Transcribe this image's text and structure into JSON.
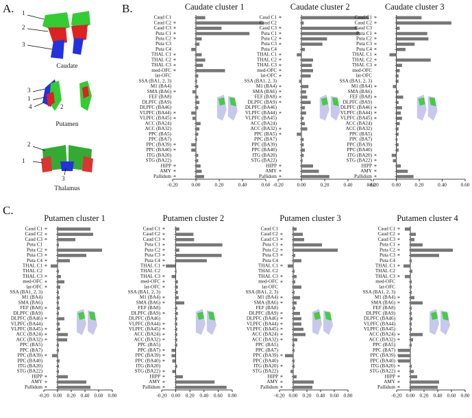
{
  "panels": {
    "a": "A.",
    "b": "B.",
    "c": "C."
  },
  "anatomy": [
    {
      "name": "Caudate",
      "callouts": [
        "1",
        "2",
        "3"
      ]
    },
    {
      "name": "Putamen",
      "callouts": [
        "3",
        "1",
        "2",
        "4"
      ]
    },
    {
      "name": "Thalamus",
      "callouts": [
        "2",
        "1",
        "3"
      ]
    }
  ],
  "chart_data": [
    {
      "type": "bar",
      "orientation": "horizontal",
      "title": "Caudate cluster 1",
      "color": "#777777",
      "categories": [
        "Caud C1",
        "Caud C2",
        "Caud C3",
        "Puta C1",
        "Puta C2",
        "Puta C3",
        "Puta C4",
        "THAL C1",
        "THAL C2",
        "THAL C3",
        "med-OFC",
        "lat-OFC",
        "SSA (BA1, 2, 3)",
        "M1 (BA4)",
        "SMA (BA6)",
        "FEF (BA8)",
        "DLPFC (BA9)",
        "DLPFC (BA46)",
        "VLPFC (BA44)",
        "VLPFC (BA45)",
        "ACC (BA24)",
        "ACC (BA32)",
        "PPC (BA5)",
        "PPC (BA7)",
        "PPC (BA39)",
        "PPC (BA40)",
        "ITG (BA20)",
        "STG (BA22)",
        "HIPP",
        "AMY",
        "Pallidum"
      ],
      "values": [
        0.08,
        0.58,
        0.22,
        0.46,
        0.05,
        0.03,
        -0.04,
        0.05,
        0.08,
        0.06,
        0.25,
        0.02,
        0.01,
        0.02,
        -0.03,
        0.02,
        0.03,
        0.02,
        -0.04,
        -0.03,
        0.04,
        0.03,
        0.02,
        0.01,
        -0.04,
        -0.04,
        0.02,
        0.02,
        0.04,
        0.05,
        0.07
      ],
      "significance_labels": [
        null,
        "*",
        "*",
        "*",
        "*",
        null,
        null,
        "*",
        "*",
        "*",
        "*",
        null,
        null,
        null,
        "*",
        null,
        null,
        null,
        "*",
        "*",
        null,
        null,
        null,
        null,
        "*",
        "*",
        null,
        null,
        "*",
        "*",
        "*"
      ],
      "xlim": [
        -0.2,
        0.6
      ],
      "xticks": [
        {
          "value": -0.2,
          "label": "-0.20"
        },
        {
          "value": 0,
          "label": "0.00"
        },
        {
          "value": 0.2,
          "label": "0.20"
        },
        {
          "value": 0.4,
          "label": "0.40"
        },
        {
          "value": 0.6,
          "label": "0.60"
        }
      ]
    },
    {
      "type": "bar",
      "orientation": "horizontal",
      "title": "Caudate cluster 2",
      "color": "#777777",
      "categories": [
        "Caud C1",
        "Caud C2",
        "Caud C3",
        "Puta C1",
        "Puta C2",
        "Puta C3",
        "Puta C4",
        "THAL C1",
        "THAL C2",
        "THAL C3",
        "med-OFC",
        "lat-OFC",
        "SSA (BA1, 2, 3)",
        "M1 (BA4)",
        "SMA (BA6)",
        "FEF (BA8)",
        "DLPFC (BA9)",
        "DLPFC (BA46)",
        "VLPFC (BA44)",
        "VLPFC (BA45)",
        "ACC (BA24)",
        "ACC (BA32)",
        "PPC (BA5)",
        "PPC (BA7)",
        "PPC (BA39)",
        "PPC (BA40)",
        "ITG (BA20)",
        "STG (BA22)",
        "HIPP",
        "AMY",
        "Pallidum"
      ],
      "values": [
        0.58,
        0.02,
        0.48,
        0.5,
        0.22,
        0.18,
        0.03,
        -0.04,
        0.1,
        0.09,
        0.1,
        0.08,
        -0.02,
        0.06,
        0.04,
        0.05,
        0.08,
        0.03,
        0.04,
        0.02,
        0.03,
        0.05,
        -0.04,
        0.02,
        0.02,
        0.03,
        0.02,
        0.01,
        0.1,
        0.15,
        0.24
      ],
      "significance_labels": [
        "*",
        null,
        "*",
        "*",
        "*",
        "*",
        null,
        "*",
        "*",
        "*",
        "*",
        "*",
        null,
        "*",
        "*",
        "*",
        "*",
        null,
        "*",
        null,
        null,
        "*",
        "*",
        null,
        null,
        null,
        null,
        null,
        "*",
        "*",
        "*"
      ],
      "xlim": [
        -0.2,
        0.6
      ],
      "xticks": [
        {
          "value": -0.2,
          "label": "-0.20"
        },
        {
          "value": 0,
          "label": "0.00"
        },
        {
          "value": 0.2,
          "label": "0.20"
        },
        {
          "value": 0.4,
          "label": "0.40"
        },
        {
          "value": 0.6,
          "label": "0.60"
        }
      ]
    },
    {
      "type": "bar",
      "orientation": "horizontal",
      "title": "Caudate cluster 3",
      "color": "#777777",
      "categories": [
        "Caud C1",
        "Caud C2",
        "Caud C3",
        "Puta C1",
        "Puta C2",
        "Puta C3",
        "Puta C4",
        "THAL C1",
        "THAL C2",
        "THAL C3",
        "med-OFC",
        "lat-OFC",
        "SSA (BA1, 2, 3)",
        "M1 (BA4)",
        "SMA (BA6)",
        "FEF (BA8)",
        "DLPFC (BA9)",
        "DLPFC (BA46)",
        "VLPFC (BA44)",
        "VLPFC (BA45)",
        "ACC (BA24)",
        "ACC (BA32)",
        "PPC (BA5)",
        "PPC (BA7)",
        "PPC (BA39)",
        "PPC (BA40)",
        "ITG (BA20)",
        "STG (BA22)",
        "HIPP",
        "AMY",
        "Pallidum"
      ],
      "values": [
        0.22,
        0.48,
        0.03,
        0.27,
        0.28,
        0.16,
        0.08,
        -0.06,
        0.3,
        0.05,
        0.03,
        0.02,
        0.02,
        -0.03,
        0.02,
        0.06,
        0.02,
        0.05,
        0.04,
        0.05,
        0.03,
        0.02,
        0.02,
        0.01,
        0.02,
        0.02,
        -0.04,
        -0.03,
        0.04,
        0.1,
        0.15
      ],
      "significance_labels": [
        "*",
        "*",
        null,
        "*",
        "*",
        "*",
        "*",
        "*",
        "*",
        "*",
        null,
        null,
        null,
        "*",
        null,
        "*",
        null,
        "*",
        "*",
        "*",
        null,
        null,
        null,
        null,
        null,
        null,
        "*",
        "*",
        "*",
        "*",
        "*"
      ],
      "xlim": [
        -0.2,
        0.6
      ],
      "xticks": [
        {
          "value": -0.2,
          "label": "-0.20"
        },
        {
          "value": 0,
          "label": "0.00"
        },
        {
          "value": 0.2,
          "label": "0.20"
        },
        {
          "value": 0.4,
          "label": "0.40"
        },
        {
          "value": 0.6,
          "label": "0.60"
        }
      ]
    },
    {
      "type": "bar",
      "orientation": "horizontal",
      "title": "Putamen cluster 1",
      "color": "#777777",
      "categories": [
        "Caud C1",
        "Caud C2",
        "Caud C3",
        "Puta C1",
        "Puta C2",
        "Puta C3",
        "Puta C4",
        "THAL C1",
        "THAL C2",
        "THAL C3",
        "med-OFC",
        "lat-OFC",
        "SSA (BA1, 2, 3)",
        "M1 (BA4)",
        "SMA (BA6)",
        "FEF (BA8)",
        "DLPFC (BA9)",
        "DLPFC (BA46)",
        "VLPFC (BA44)",
        "VLPFC (BA45)",
        "ACC (BA24)",
        "ACC (BA32)",
        "PPC (BA5)",
        "PPC (BA7)",
        "PPC (BA39)",
        "PPC (BA40)",
        "ITG (BA20)",
        "STG (BA22)",
        "HIPP",
        "AMY",
        "Pallidum"
      ],
      "values": [
        0.48,
        0.52,
        0.26,
        0.02,
        0.65,
        0.42,
        0.18,
        -0.1,
        0.02,
        0.05,
        0.1,
        0.04,
        0.02,
        0.03,
        0.02,
        0.03,
        0.02,
        0.1,
        0.03,
        0.04,
        0.15,
        0.14,
        0.02,
        0.02,
        -0.08,
        0.03,
        0.02,
        0.02,
        0.15,
        0.42,
        0.48
      ],
      "significance_labels": [
        "*",
        "*",
        "*",
        null,
        "*",
        "*",
        "*",
        "*",
        null,
        "*",
        "*",
        "*",
        null,
        null,
        null,
        "*",
        null,
        "*",
        null,
        "*",
        "*",
        "*",
        null,
        null,
        "*",
        null,
        null,
        null,
        "*",
        "*",
        "*"
      ],
      "xlim": [
        -0.2,
        0.8
      ],
      "xticks": [
        {
          "value": -0.2,
          "label": "-0.20"
        },
        {
          "value": 0,
          "label": "0.00"
        },
        {
          "value": 0.2,
          "label": "0.20"
        },
        {
          "value": 0.4,
          "label": "0.40"
        },
        {
          "value": 0.6,
          "label": "0.60"
        },
        {
          "value": 0.8,
          "label": "0.80"
        }
      ]
    },
    {
      "type": "bar",
      "orientation": "horizontal",
      "title": "Putamen cluster 2",
      "color": "#777777",
      "categories": [
        "Caud C1",
        "Caud C2",
        "Caud C3",
        "Puta C1",
        "Puta C2",
        "Puta C3",
        "Puta C4",
        "THAL C1",
        "THAL C2",
        "THAL C3",
        "med-OFC",
        "lat-OFC",
        "SSA (BA1, 2, 3)",
        "M1 (BA4)",
        "SMA (BA6)",
        "FEF (BA8)",
        "DLPFC (BA9)",
        "DLPFC (BA46)",
        "VLPFC (BA44)",
        "VLPFC (BA45)",
        "ACC (BA24)",
        "ACC (BA32)",
        "PPC (BA5)",
        "PPC (BA7)",
        "PPC (BA39)",
        "PPC (BA40)",
        "ITG (BA20)",
        "STG (BA22)",
        "HIPP",
        "AMY",
        "Pallidum"
      ],
      "values": [
        0.05,
        0.25,
        0.26,
        0.66,
        0.05,
        0.65,
        0.44,
        -0.14,
        0.01,
        -0.06,
        0.03,
        0.03,
        0.03,
        0.04,
        0.12,
        0.02,
        0.03,
        0.02,
        0.02,
        0.02,
        0.02,
        0.02,
        0.02,
        -0.06,
        -0.06,
        -0.05,
        0.02,
        -0.05,
        0.1,
        0.55,
        0.72
      ],
      "significance_labels": [
        "*",
        "*",
        "*",
        "*",
        "*",
        "*",
        "*",
        "*",
        null,
        "*",
        "*",
        "*",
        null,
        "*",
        "*",
        null,
        "*",
        null,
        "*",
        "*",
        "*",
        "*",
        null,
        "*",
        "*",
        "*",
        null,
        "*",
        "*",
        "*",
        "*"
      ],
      "xlim": [
        -0.2,
        0.8
      ],
      "xticks": [
        {
          "value": -0.2,
          "label": "-0.20"
        },
        {
          "value": 0,
          "label": "0.00"
        },
        {
          "value": 0.2,
          "label": "0.20"
        },
        {
          "value": 0.4,
          "label": "0.40"
        },
        {
          "value": 0.6,
          "label": "0.60"
        },
        {
          "value": 0.8,
          "label": "0.80"
        }
      ]
    },
    {
      "type": "bar",
      "orientation": "horizontal",
      "title": "Putamen cluster 3",
      "color": "#777777",
      "categories": [
        "Caud C1",
        "Caud C2",
        "Caud C3",
        "Puta C1",
        "Puta C2",
        "Puta C3",
        "Puta C4",
        "THAL C1",
        "THAL C2",
        "THAL C3",
        "med-OFC",
        "lat-OFC",
        "SSA (BA1, 2, 3)",
        "M1 (BA4)",
        "SMA (BA6)",
        "FEF (BA8)",
        "DLPFC (BA9)",
        "DLPFC (BA46)",
        "VLPFC (BA44)",
        "VLPFC (BA45)",
        "ACC (BA24)",
        "ACC (BA32)",
        "PPC (BA5)",
        "PPC (BA7)",
        "PPC (BA39)",
        "PPC (BA40)",
        "ITG (BA20)",
        "STG (BA22)",
        "HIPP",
        "AMY",
        "Pallidum"
      ],
      "values": [
        0.05,
        0.14,
        0.16,
        0.42,
        0.65,
        0.03,
        0.12,
        -0.08,
        0.02,
        0.05,
        0.03,
        0.12,
        0.02,
        0.1,
        0.05,
        0.03,
        0.1,
        0.12,
        0.12,
        0.15,
        0.18,
        0.06,
        0.02,
        0.02,
        -0.12,
        0.02,
        0.02,
        -0.04,
        0.05,
        0.3,
        0.28
      ],
      "significance_labels": [
        null,
        "*",
        "*",
        "*",
        "*",
        "*",
        null,
        "*",
        null,
        "*",
        "*",
        null,
        null,
        "*",
        "*",
        null,
        "*",
        "*",
        "*",
        "*",
        "*",
        "*",
        null,
        null,
        "*",
        null,
        "*",
        null,
        "*",
        "*",
        "*"
      ],
      "xlim": [
        -0.2,
        0.8
      ],
      "xticks": [
        {
          "value": -0.2,
          "label": "-0.20"
        },
        {
          "value": 0,
          "label": "0.00"
        },
        {
          "value": 0.2,
          "label": "0.20"
        },
        {
          "value": 0.4,
          "label": "0.40"
        },
        {
          "value": 0.6,
          "label": "0.60"
        },
        {
          "value": 0.8,
          "label": "0.80"
        }
      ]
    },
    {
      "type": "bar",
      "orientation": "horizontal",
      "title": "Putamen cluster 4",
      "color": "#777777",
      "categories": [
        "Caud C1",
        "Caud C2",
        "Caud C3",
        "Puta C1",
        "Puta C2",
        "Puta C3",
        "Puta C4",
        "THAL C1",
        "THAL C2",
        "THAL C3",
        "med-OFC",
        "lat-OFC",
        "SSA (BA1, 2, 3)",
        "M1 (BA4)",
        "SMA (BA6)",
        "FEF (BA8)",
        "DLPFC (BA9)",
        "DLPFC (BA46)",
        "VLPFC (BA44)",
        "VLPFC (BA45)",
        "ACC (BA24)",
        "ACC (BA32)",
        "PPC (BA5)",
        "PPC (BA7)",
        "PPC (BA39)",
        "PPC (BA40)",
        "ITG (BA20)",
        "STG (BA22)",
        "HIPP",
        "AMY",
        "Pallidum"
      ],
      "values": [
        -0.08,
        0.08,
        0.06,
        0.18,
        0.62,
        0.42,
        0.02,
        -0.1,
        0.03,
        -0.08,
        0.02,
        0.02,
        0.02,
        0.06,
        0.18,
        0.02,
        0.02,
        0.03,
        0.02,
        0.02,
        0.18,
        0.04,
        0.02,
        -0.18,
        -0.18,
        -0.18,
        0.02,
        0.05,
        0.1,
        0.42,
        0.4
      ],
      "significance_labels": [
        "*",
        "*",
        "*",
        "*",
        "*",
        "*",
        null,
        "*",
        null,
        "*",
        null,
        null,
        null,
        "*",
        "*",
        null,
        null,
        null,
        null,
        null,
        "*",
        "*",
        null,
        "*",
        "*",
        "*",
        "*",
        "*",
        "*",
        "*",
        "*"
      ],
      "xlim": [
        -0.2,
        0.8
      ],
      "xticks": [
        {
          "value": -0.2,
          "label": "-0.20"
        },
        {
          "value": 0,
          "label": "0.00"
        },
        {
          "value": 0.2,
          "label": "0.20"
        },
        {
          "value": 0.4,
          "label": "0.40"
        },
        {
          "value": 0.6,
          "label": "0.60"
        },
        {
          "value": 0.8,
          "label": "0.80"
        }
      ]
    }
  ]
}
